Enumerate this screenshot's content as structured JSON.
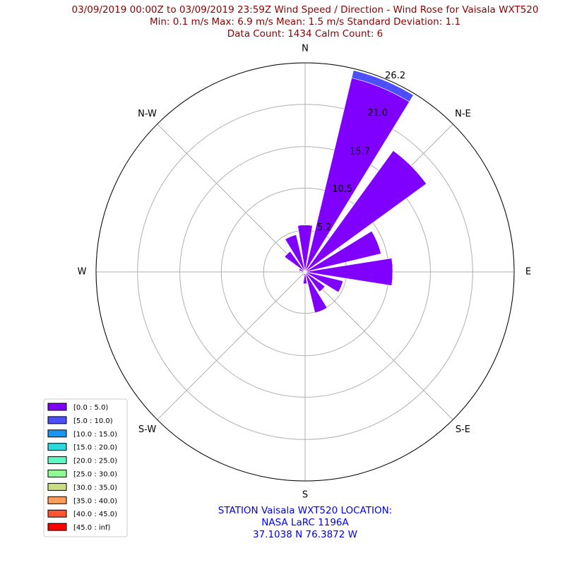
{
  "chart_data": {
    "type": "windrose",
    "title_lines": [
      "03/09/2019 00:00Z to 03/09/2019 23:59Z Wind Speed / Direction - Wind Rose for Vaisala WXT520",
      "Min: 0.1 m/s   Max: 6.9 m/s   Mean: 1.5 m/s  Standard Deviation: 1.1",
      "Data Count: 1434  Calm Count:  6"
    ],
    "footer_lines": [
      "STATION Vaisala WXT520 LOCATION:",
      "NASA LaRC 1196A",
      "37.1038 N 76.3872 W"
    ],
    "categories": [
      "N",
      null,
      "N-E",
      null,
      "E",
      null,
      "S-E",
      null,
      "S",
      null,
      "S-W",
      null,
      "W",
      null,
      "N-W",
      null
    ],
    "rlim": [
      0,
      26.2
    ],
    "rticks": [
      5.2,
      10.5,
      15.7,
      {
        "value": 21.0,
        "label": "21.0"
      },
      26.2
    ],
    "grid": true,
    "legend": "lower left",
    "series": [
      {
        "name": "[0.0 : 5.0)",
        "color": "#8000ff",
        "values": [
          5.9,
          25.0,
          18.8,
          9.8,
          11.0,
          4.9,
          3.1,
          5.3,
          1.5,
          0.5,
          0.3,
          0.3,
          0.5,
          0.8,
          3.2,
          4.8
        ]
      },
      {
        "name": "[5.0 : 10.0)",
        "color": "#4b50fc",
        "values": [
          0,
          1.0,
          0,
          0,
          0,
          0,
          0,
          0,
          0,
          0,
          0,
          0,
          0,
          0,
          0,
          0
        ]
      },
      {
        "name": "[10.0 : 15.0)",
        "color": "#1996f3",
        "values": [
          0,
          0,
          0,
          0,
          0,
          0,
          0,
          0,
          0,
          0,
          0,
          0,
          0,
          0,
          0,
          0
        ]
      },
      {
        "name": "[15.0 : 20.0)",
        "color": "#2cd9dc",
        "values": [
          0,
          0,
          0,
          0,
          0,
          0,
          0,
          0,
          0,
          0,
          0,
          0,
          0,
          0,
          0,
          0
        ]
      },
      {
        "name": "[20.0 : 25.0)",
        "color": "#5ef6c2",
        "values": [
          0,
          0,
          0,
          0,
          0,
          0,
          0,
          0,
          0,
          0,
          0,
          0,
          0,
          0,
          0,
          0
        ]
      },
      {
        "name": "[25.0 : 30.0)",
        "color": "#90fb95",
        "values": [
          0,
          0,
          0,
          0,
          0,
          0,
          0,
          0,
          0,
          0,
          0,
          0,
          0,
          0,
          0,
          0
        ]
      },
      {
        "name": "[30.0 : 35.0)",
        "color": "#c8dc80",
        "values": [
          0,
          0,
          0,
          0,
          0,
          0,
          0,
          0,
          0,
          0,
          0,
          0,
          0,
          0,
          0,
          0
        ]
      },
      {
        "name": "[35.0 : 40.0)",
        "color": "#fd9e5c",
        "values": [
          0,
          0,
          0,
          0,
          0,
          0,
          0,
          0,
          0,
          0,
          0,
          0,
          0,
          0,
          0,
          0
        ]
      },
      {
        "name": "[40.0 : 45.0)",
        "color": "#ff5530",
        "values": [
          0,
          0,
          0,
          0,
          0,
          0,
          0,
          0,
          0,
          0,
          0,
          0,
          0,
          0,
          0,
          0
        ]
      },
      {
        "name": "[45.0 : inf)",
        "color": "#ff0000",
        "values": [
          0,
          0,
          0,
          0,
          0,
          0,
          0,
          0,
          0,
          0,
          0,
          0,
          0,
          0,
          0,
          0
        ]
      }
    ]
  }
}
